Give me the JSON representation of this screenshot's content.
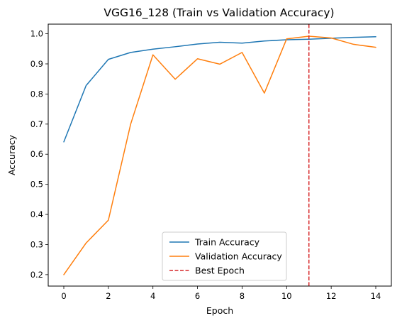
{
  "chart_data": {
    "type": "line",
    "title": "VGG16_128 (Train vs Validation Accuracy)",
    "xlabel": "Epoch",
    "ylabel": "Accuracy",
    "x": [
      0,
      1,
      2,
      3,
      4,
      5,
      6,
      7,
      8,
      9,
      10,
      11,
      12,
      13,
      14
    ],
    "xlim": [
      -0.7,
      14.7
    ],
    "ylim": [
      0.162,
      1.032
    ],
    "xticks": [
      0,
      2,
      4,
      6,
      8,
      10,
      12,
      14
    ],
    "yticks": [
      0.2,
      0.3,
      0.4,
      0.5,
      0.6,
      0.7,
      0.8,
      0.9,
      1.0
    ],
    "xtick_labels": [
      "0",
      "2",
      "4",
      "6",
      "8",
      "10",
      "12",
      "14"
    ],
    "ytick_labels": [
      "0.2",
      "0.3",
      "0.4",
      "0.5",
      "0.6",
      "0.7",
      "0.8",
      "0.9",
      "1.0"
    ],
    "grid": false,
    "legend_position": "lower-center",
    "series": [
      {
        "name": "Train Accuracy",
        "color": "#1f77b4",
        "values": [
          0.641,
          0.828,
          0.915,
          0.938,
          0.949,
          0.957,
          0.966,
          0.972,
          0.969,
          0.976,
          0.98,
          0.982,
          0.985,
          0.988,
          0.99
        ]
      },
      {
        "name": "Validation Accuracy",
        "color": "#ff7f0e",
        "values": [
          0.2,
          0.305,
          0.381,
          0.7,
          0.93,
          0.849,
          0.917,
          0.899,
          0.938,
          0.803,
          0.983,
          0.992,
          0.986,
          0.965,
          0.955
        ]
      }
    ],
    "reference_lines": [
      {
        "name": "Best Epoch",
        "orientation": "vertical",
        "x": 11,
        "color": "#d62728",
        "style": "dashed"
      }
    ]
  }
}
